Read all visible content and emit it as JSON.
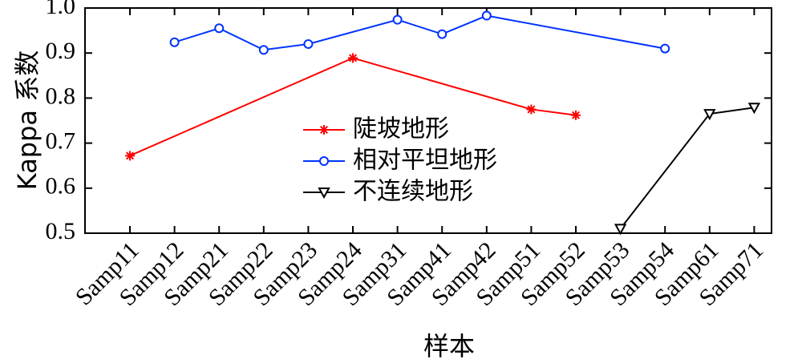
{
  "chart_data": {
    "type": "line",
    "categories": [
      "Samp11",
      "Samp12",
      "Samp21",
      "Samp22",
      "Samp23",
      "Samp24",
      "Samp31",
      "Samp41",
      "Samp42",
      "Samp51",
      "Samp52",
      "Samp53",
      "Samp54",
      "Samp61",
      "Samp71"
    ],
    "xlabel": "样本",
    "ylabel": "Kappa 系数",
    "ylim": [
      0.5,
      1.0
    ],
    "yticks": [
      "0.5",
      "0.6",
      "0.7",
      "0.8",
      "0.9",
      "1.0"
    ],
    "grid": false,
    "legend_position": "center",
    "series": [
      {
        "name": "陡坡地形",
        "color": "#ff0000",
        "marker": "asterisk",
        "points": [
          [
            "Samp11",
            0.672
          ],
          [
            "Samp24",
            0.889
          ],
          [
            "Samp51",
            0.775
          ],
          [
            "Samp52",
            0.762
          ]
        ]
      },
      {
        "name": "相对平坦地形",
        "color": "#0033ff",
        "marker": "circle",
        "points": [
          [
            "Samp12",
            0.924
          ],
          [
            "Samp21",
            0.955
          ],
          [
            "Samp22",
            0.907
          ],
          [
            "Samp23",
            0.92
          ],
          [
            "Samp31",
            0.974
          ],
          [
            "Samp41",
            0.942
          ],
          [
            "Samp42",
            0.983
          ],
          [
            "Samp54",
            0.91
          ]
        ]
      },
      {
        "name": "不连续地形",
        "color": "#000000",
        "marker": "triangle-down",
        "points": [
          [
            "Samp53",
            0.51
          ],
          [
            "Samp61",
            0.765
          ],
          [
            "Samp71",
            0.779
          ]
        ]
      }
    ]
  }
}
